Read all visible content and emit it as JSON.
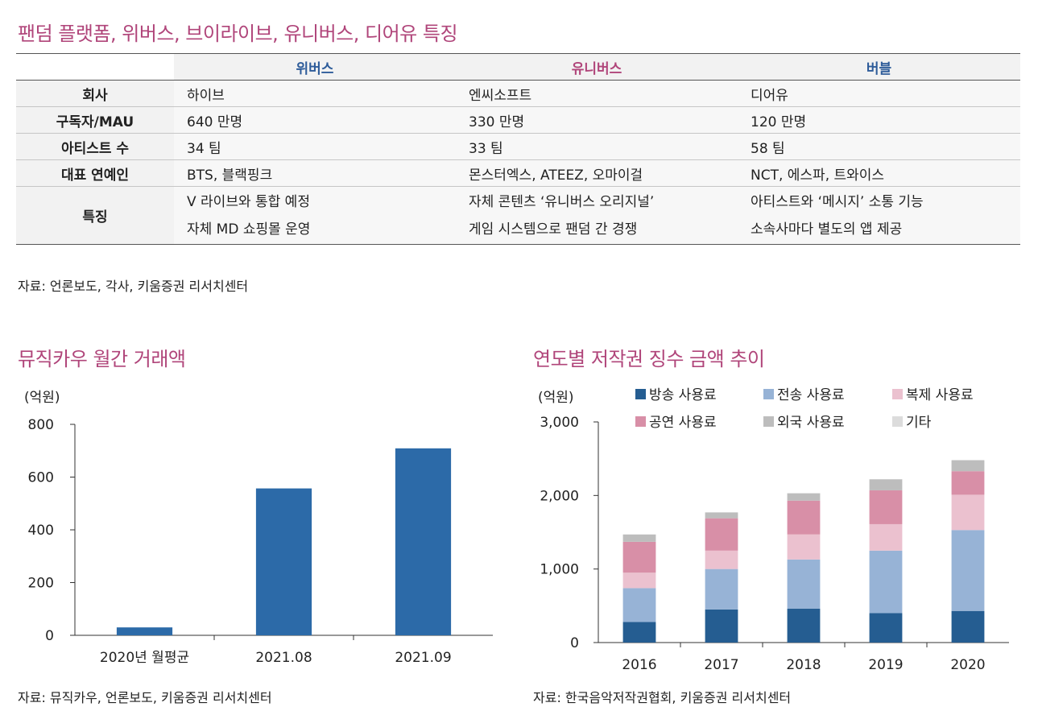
{
  "table_section": {
    "title": "팬덤 플랫폼, 위버스, 브이라이브, 유니버스, 디어유 특징",
    "headers": [
      "위버스",
      "유니버스",
      "버블"
    ],
    "rows": [
      {
        "label": "회사",
        "cells": [
          [
            "하이브"
          ],
          [
            "엔씨소프트"
          ],
          [
            "디어유"
          ]
        ]
      },
      {
        "label": "구독자/MAU",
        "cells": [
          [
            "640 만명"
          ],
          [
            "330 만명"
          ],
          [
            "120 만명"
          ]
        ]
      },
      {
        "label": "아티스트 수",
        "cells": [
          [
            "34 팀"
          ],
          [
            "33 팀"
          ],
          [
            "58 팀"
          ]
        ]
      },
      {
        "label": "대표 연예인",
        "cells": [
          [
            "BTS, 블랙핑크"
          ],
          [
            "몬스터엑스, ATEEZ, 오마이걸"
          ],
          [
            "NCT, 에스파, 트와이스"
          ]
        ]
      },
      {
        "label": "특징",
        "cells": [
          [
            "V 라이브와 통합 예정",
            "자체 MD 쇼핑몰 운영"
          ],
          [
            "자체 콘텐츠 ‘유니버스 오리지널’",
            "게임 시스템으로 팬덤 간 경쟁"
          ],
          [
            "아티스트와 ‘메시지’ 소통 기능",
            "소속사마다 별도의 앱 제공"
          ]
        ]
      }
    ],
    "source": "자료: 언론보도, 각사, 키움증권 리서치센터"
  },
  "left_chart": {
    "section_title": "뮤직카우 월간 거래액",
    "source": "자료: 뮤직카우, 언론보도, 키움증권 리서치센터"
  },
  "right_chart": {
    "section_title": "연도별 저작권 징수 금액 추이",
    "source": "자료: 한국음악저작권협회, 키움증권 리서치센터"
  },
  "chart_data": [
    {
      "type": "bar",
      "title": "뮤직카우 월간 거래액",
      "unit_label": "(억원)",
      "categories": [
        "2020년 월평균",
        "2021.08",
        "2021.09"
      ],
      "values": [
        30,
        557,
        709
      ],
      "ylim": [
        0,
        800
      ],
      "yticks": [
        0,
        200,
        400,
        600,
        800
      ],
      "ytick_labels": [
        "0",
        "200",
        "400",
        "600",
        "800"
      ],
      "color": "#2c6aa8",
      "grid": false
    },
    {
      "type": "bar",
      "stacked": true,
      "title": "연도별 저작권 징수 금액 추이",
      "unit_label": "(억원)",
      "categories": [
        "2016",
        "2017",
        "2018",
        "2019",
        "2020"
      ],
      "ylim": [
        0,
        3000
      ],
      "yticks": [
        0,
        1000,
        2000,
        3000
      ],
      "ytick_labels": [
        "0",
        "1,000",
        "2,000",
        "3,000"
      ],
      "legend_position": "top",
      "grid": false,
      "series": [
        {
          "name": "방송 사용료",
          "color": "#255d91",
          "values": [
            280,
            450,
            460,
            400,
            430
          ]
        },
        {
          "name": "전송 사용료",
          "color": "#97b3d6",
          "values": [
            460,
            550,
            670,
            850,
            1100
          ]
        },
        {
          "name": "복제 사용료",
          "color": "#ebc1cf",
          "values": [
            210,
            250,
            340,
            360,
            480
          ]
        },
        {
          "name": "공연 사용료",
          "color": "#d88fa7",
          "values": [
            420,
            440,
            460,
            460,
            320
          ]
        },
        {
          "name": "외국 사용료",
          "color": "#bdbdbd",
          "values": [
            100,
            80,
            100,
            150,
            150
          ]
        },
        {
          "name": "기타",
          "color": "#dcdcdc",
          "values": [
            0,
            0,
            0,
            0,
            0
          ]
        }
      ]
    }
  ]
}
